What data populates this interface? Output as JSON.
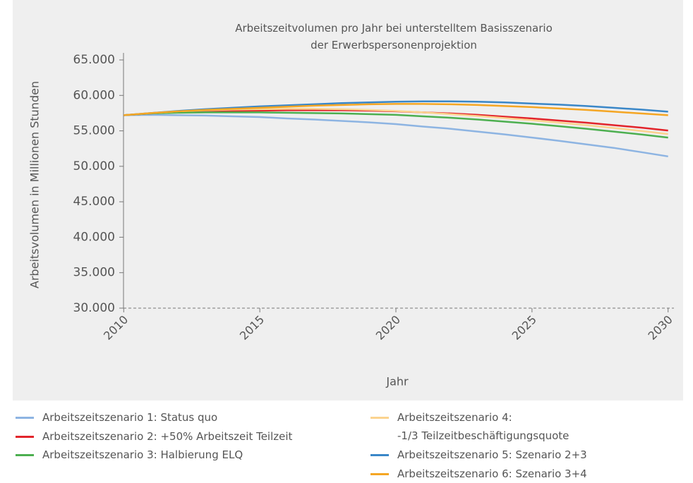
{
  "chart_data": {
    "type": "line",
    "title": "Arbeitszeitvolumen pro Jahr bei unterstelltem Basisszenario\nder Erwerbspersonenprojektion",
    "xlabel": "Jahr",
    "ylabel": "Arbeitsvolumen in Millionen Stunden",
    "x": [
      2010,
      2011,
      2012,
      2013,
      2014,
      2015,
      2016,
      2017,
      2018,
      2019,
      2020,
      2021,
      2022,
      2023,
      2024,
      2025,
      2026,
      2027,
      2028,
      2029,
      2030
    ],
    "xlim": [
      2009.5,
      2030.5
    ],
    "xticks": [
      2010,
      2015,
      2020,
      2025,
      2030
    ],
    "ylim": [
      30000,
      65000
    ],
    "yticks": [
      {
        "value": 30000,
        "label": "30.000"
      },
      {
        "value": 35000,
        "label": "35.000"
      },
      {
        "value": 40000,
        "label": "40.000"
      },
      {
        "value": 45000,
        "label": "45.000"
      },
      {
        "value": 50000,
        "label": "50.000"
      },
      {
        "value": 55000,
        "label": "55.000"
      },
      {
        "value": 60000,
        "label": "60.000"
      },
      {
        "value": 65000,
        "label": "65.000"
      }
    ],
    "series": [
      {
        "name": "Arbeitszeitszenario 1: Status quo",
        "color": "#8db4e2",
        "values": [
          57200,
          57250,
          57200,
          57150,
          57050,
          56950,
          56750,
          56600,
          56400,
          56200,
          55950,
          55600,
          55300,
          54900,
          54500,
          54050,
          53600,
          53100,
          52600,
          52000,
          51400
        ]
      },
      {
        "name": "Arbeitszeitszenario 2: +50% Arbeitszeit Teilzeit",
        "color": "#e2242b",
        "values": [
          57200,
          57450,
          57650,
          57750,
          57800,
          57850,
          57900,
          57900,
          57900,
          57850,
          57750,
          57600,
          57450,
          57250,
          57000,
          56750,
          56450,
          56150,
          55800,
          55450,
          55050
        ]
      },
      {
        "name": "Arbeitszeitszenario 3: Halbierung ELQ",
        "color": "#4caf50",
        "values": [
          57200,
          57450,
          57550,
          57600,
          57600,
          57600,
          57550,
          57500,
          57450,
          57350,
          57250,
          57050,
          56850,
          56600,
          56300,
          56000,
          55650,
          55300,
          54900,
          54500,
          54050
        ]
      },
      {
        "name": "Arbeitszeitszenario 4:\n-1/3 Teilzeitbeschäftigungsquote",
        "color": "#fbd38f",
        "values": [
          57200,
          57500,
          57750,
          57900,
          58000,
          58050,
          58100,
          58100,
          58050,
          57950,
          57800,
          57600,
          57350,
          57100,
          56800,
          56500,
          56150,
          55800,
          55400,
          55000,
          54550
        ]
      },
      {
        "name": "Arbeitszeitszenario 5: Szenario 2+3",
        "color": "#3a87c8",
        "values": [
          57200,
          57500,
          57800,
          58050,
          58250,
          58450,
          58600,
          58750,
          58900,
          59000,
          59100,
          59150,
          59150,
          59100,
          59000,
          58850,
          58700,
          58500,
          58250,
          58000,
          57700
        ]
      },
      {
        "name": "Arbeitszeitszenario 6: Szenario 3+4",
        "color": "#f5a623",
        "values": [
          57200,
          57500,
          57750,
          57950,
          58100,
          58250,
          58400,
          58550,
          58650,
          58750,
          58800,
          58800,
          58750,
          58650,
          58500,
          58350,
          58150,
          57950,
          57700,
          57450,
          57200
        ]
      }
    ]
  }
}
